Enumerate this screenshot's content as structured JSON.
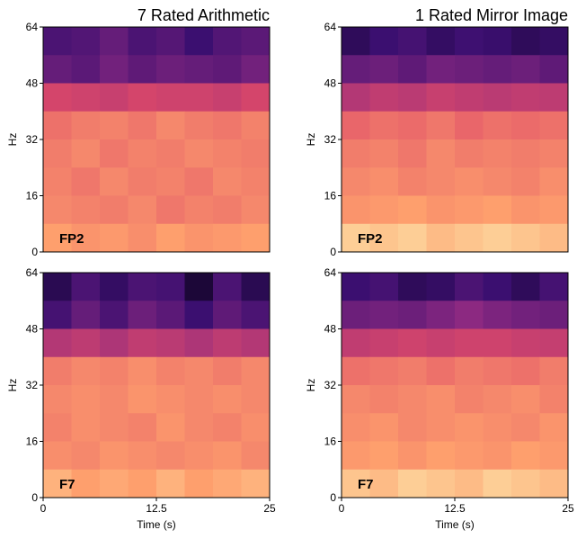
{
  "chart_data": [
    {
      "type": "heatmap",
      "title": "7 Rated Arithmetic",
      "ylabel": "Hz",
      "annotation": "FP2",
      "colormap": "magma",
      "xlim": [
        0,
        25
      ],
      "ylim": [
        0,
        64
      ],
      "yticks": [
        0,
        16,
        32,
        48,
        64
      ],
      "z": [
        [
          0.3,
          0.32,
          0.38,
          0.3,
          0.33,
          0.25,
          0.32,
          0.35
        ],
        [
          0.38,
          0.35,
          0.42,
          0.36,
          0.4,
          0.38,
          0.36,
          0.42
        ],
        [
          0.72,
          0.7,
          0.68,
          0.72,
          0.7,
          0.7,
          0.68,
          0.72
        ],
        [
          0.82,
          0.84,
          0.85,
          0.83,
          0.86,
          0.84,
          0.83,
          0.85
        ],
        [
          0.84,
          0.86,
          0.83,
          0.85,
          0.84,
          0.86,
          0.85,
          0.84
        ],
        [
          0.85,
          0.83,
          0.86,
          0.84,
          0.85,
          0.83,
          0.86,
          0.85
        ],
        [
          0.86,
          0.85,
          0.84,
          0.86,
          0.83,
          0.85,
          0.84,
          0.86
        ],
        [
          0.9,
          0.88,
          0.89,
          0.87,
          0.9,
          0.88,
          0.89,
          0.9
        ]
      ]
    },
    {
      "type": "heatmap",
      "title": "1 Rated Mirror Image",
      "ylabel": "Hz",
      "annotation": "FP2",
      "colormap": "magma",
      "xlim": [
        0,
        25
      ],
      "ylim": [
        0,
        64
      ],
      "yticks": [
        0,
        16,
        32,
        48,
        64
      ],
      "z": [
        [
          0.2,
          0.25,
          0.28,
          0.22,
          0.26,
          0.24,
          0.2,
          0.22
        ],
        [
          0.38,
          0.4,
          0.36,
          0.42,
          0.4,
          0.38,
          0.4,
          0.36
        ],
        [
          0.62,
          0.66,
          0.64,
          0.68,
          0.66,
          0.64,
          0.66,
          0.65
        ],
        [
          0.8,
          0.82,
          0.81,
          0.83,
          0.8,
          0.82,
          0.81,
          0.82
        ],
        [
          0.84,
          0.85,
          0.83,
          0.86,
          0.84,
          0.85,
          0.84,
          0.85
        ],
        [
          0.86,
          0.87,
          0.85,
          0.86,
          0.87,
          0.86,
          0.85,
          0.87
        ],
        [
          0.88,
          0.89,
          0.9,
          0.88,
          0.89,
          0.9,
          0.88,
          0.89
        ],
        [
          0.95,
          0.94,
          0.95,
          0.93,
          0.94,
          0.95,
          0.94,
          0.93
        ]
      ]
    },
    {
      "type": "heatmap",
      "xlabel": "Time (s)",
      "ylabel": "Hz",
      "annotation": "F7",
      "colormap": "magma",
      "xlim": [
        0,
        25
      ],
      "ylim": [
        0,
        64
      ],
      "xticks": [
        0,
        12.5,
        25
      ],
      "yticks": [
        0,
        16,
        32,
        48,
        64
      ],
      "z": [
        [
          0.18,
          0.3,
          0.22,
          0.3,
          0.28,
          0.12,
          0.3,
          0.18
        ],
        [
          0.28,
          0.38,
          0.3,
          0.4,
          0.35,
          0.25,
          0.36,
          0.3
        ],
        [
          0.62,
          0.65,
          0.6,
          0.66,
          0.64,
          0.6,
          0.65,
          0.62
        ],
        [
          0.84,
          0.86,
          0.85,
          0.87,
          0.85,
          0.86,
          0.84,
          0.86
        ],
        [
          0.86,
          0.87,
          0.86,
          0.88,
          0.87,
          0.86,
          0.87,
          0.86
        ],
        [
          0.85,
          0.87,
          0.86,
          0.85,
          0.88,
          0.86,
          0.85,
          0.87
        ],
        [
          0.87,
          0.86,
          0.88,
          0.87,
          0.86,
          0.87,
          0.88,
          0.86
        ],
        [
          0.92,
          0.9,
          0.91,
          0.9,
          0.92,
          0.9,
          0.91,
          0.92
        ]
      ]
    },
    {
      "type": "heatmap",
      "xlabel": "Time (s)",
      "ylabel": "Hz",
      "annotation": "F7",
      "colormap": "magma",
      "xlim": [
        0,
        25
      ],
      "ylim": [
        0,
        64
      ],
      "xticks": [
        0,
        12.5,
        25
      ],
      "yticks": [
        0,
        16,
        32,
        48,
        64
      ],
      "z": [
        [
          0.25,
          0.28,
          0.2,
          0.22,
          0.3,
          0.25,
          0.2,
          0.28
        ],
        [
          0.4,
          0.42,
          0.4,
          0.45,
          0.5,
          0.45,
          0.42,
          0.4
        ],
        [
          0.66,
          0.68,
          0.7,
          0.68,
          0.7,
          0.7,
          0.68,
          0.67
        ],
        [
          0.82,
          0.83,
          0.84,
          0.82,
          0.84,
          0.83,
          0.82,
          0.84
        ],
        [
          0.86,
          0.85,
          0.86,
          0.87,
          0.85,
          0.86,
          0.87,
          0.85
        ],
        [
          0.87,
          0.88,
          0.86,
          0.87,
          0.88,
          0.87,
          0.86,
          0.88
        ],
        [
          0.89,
          0.9,
          0.88,
          0.9,
          0.89,
          0.88,
          0.9,
          0.89
        ],
        [
          0.94,
          0.93,
          0.95,
          0.94,
          0.93,
          0.95,
          0.94,
          0.93
        ]
      ]
    }
  ]
}
